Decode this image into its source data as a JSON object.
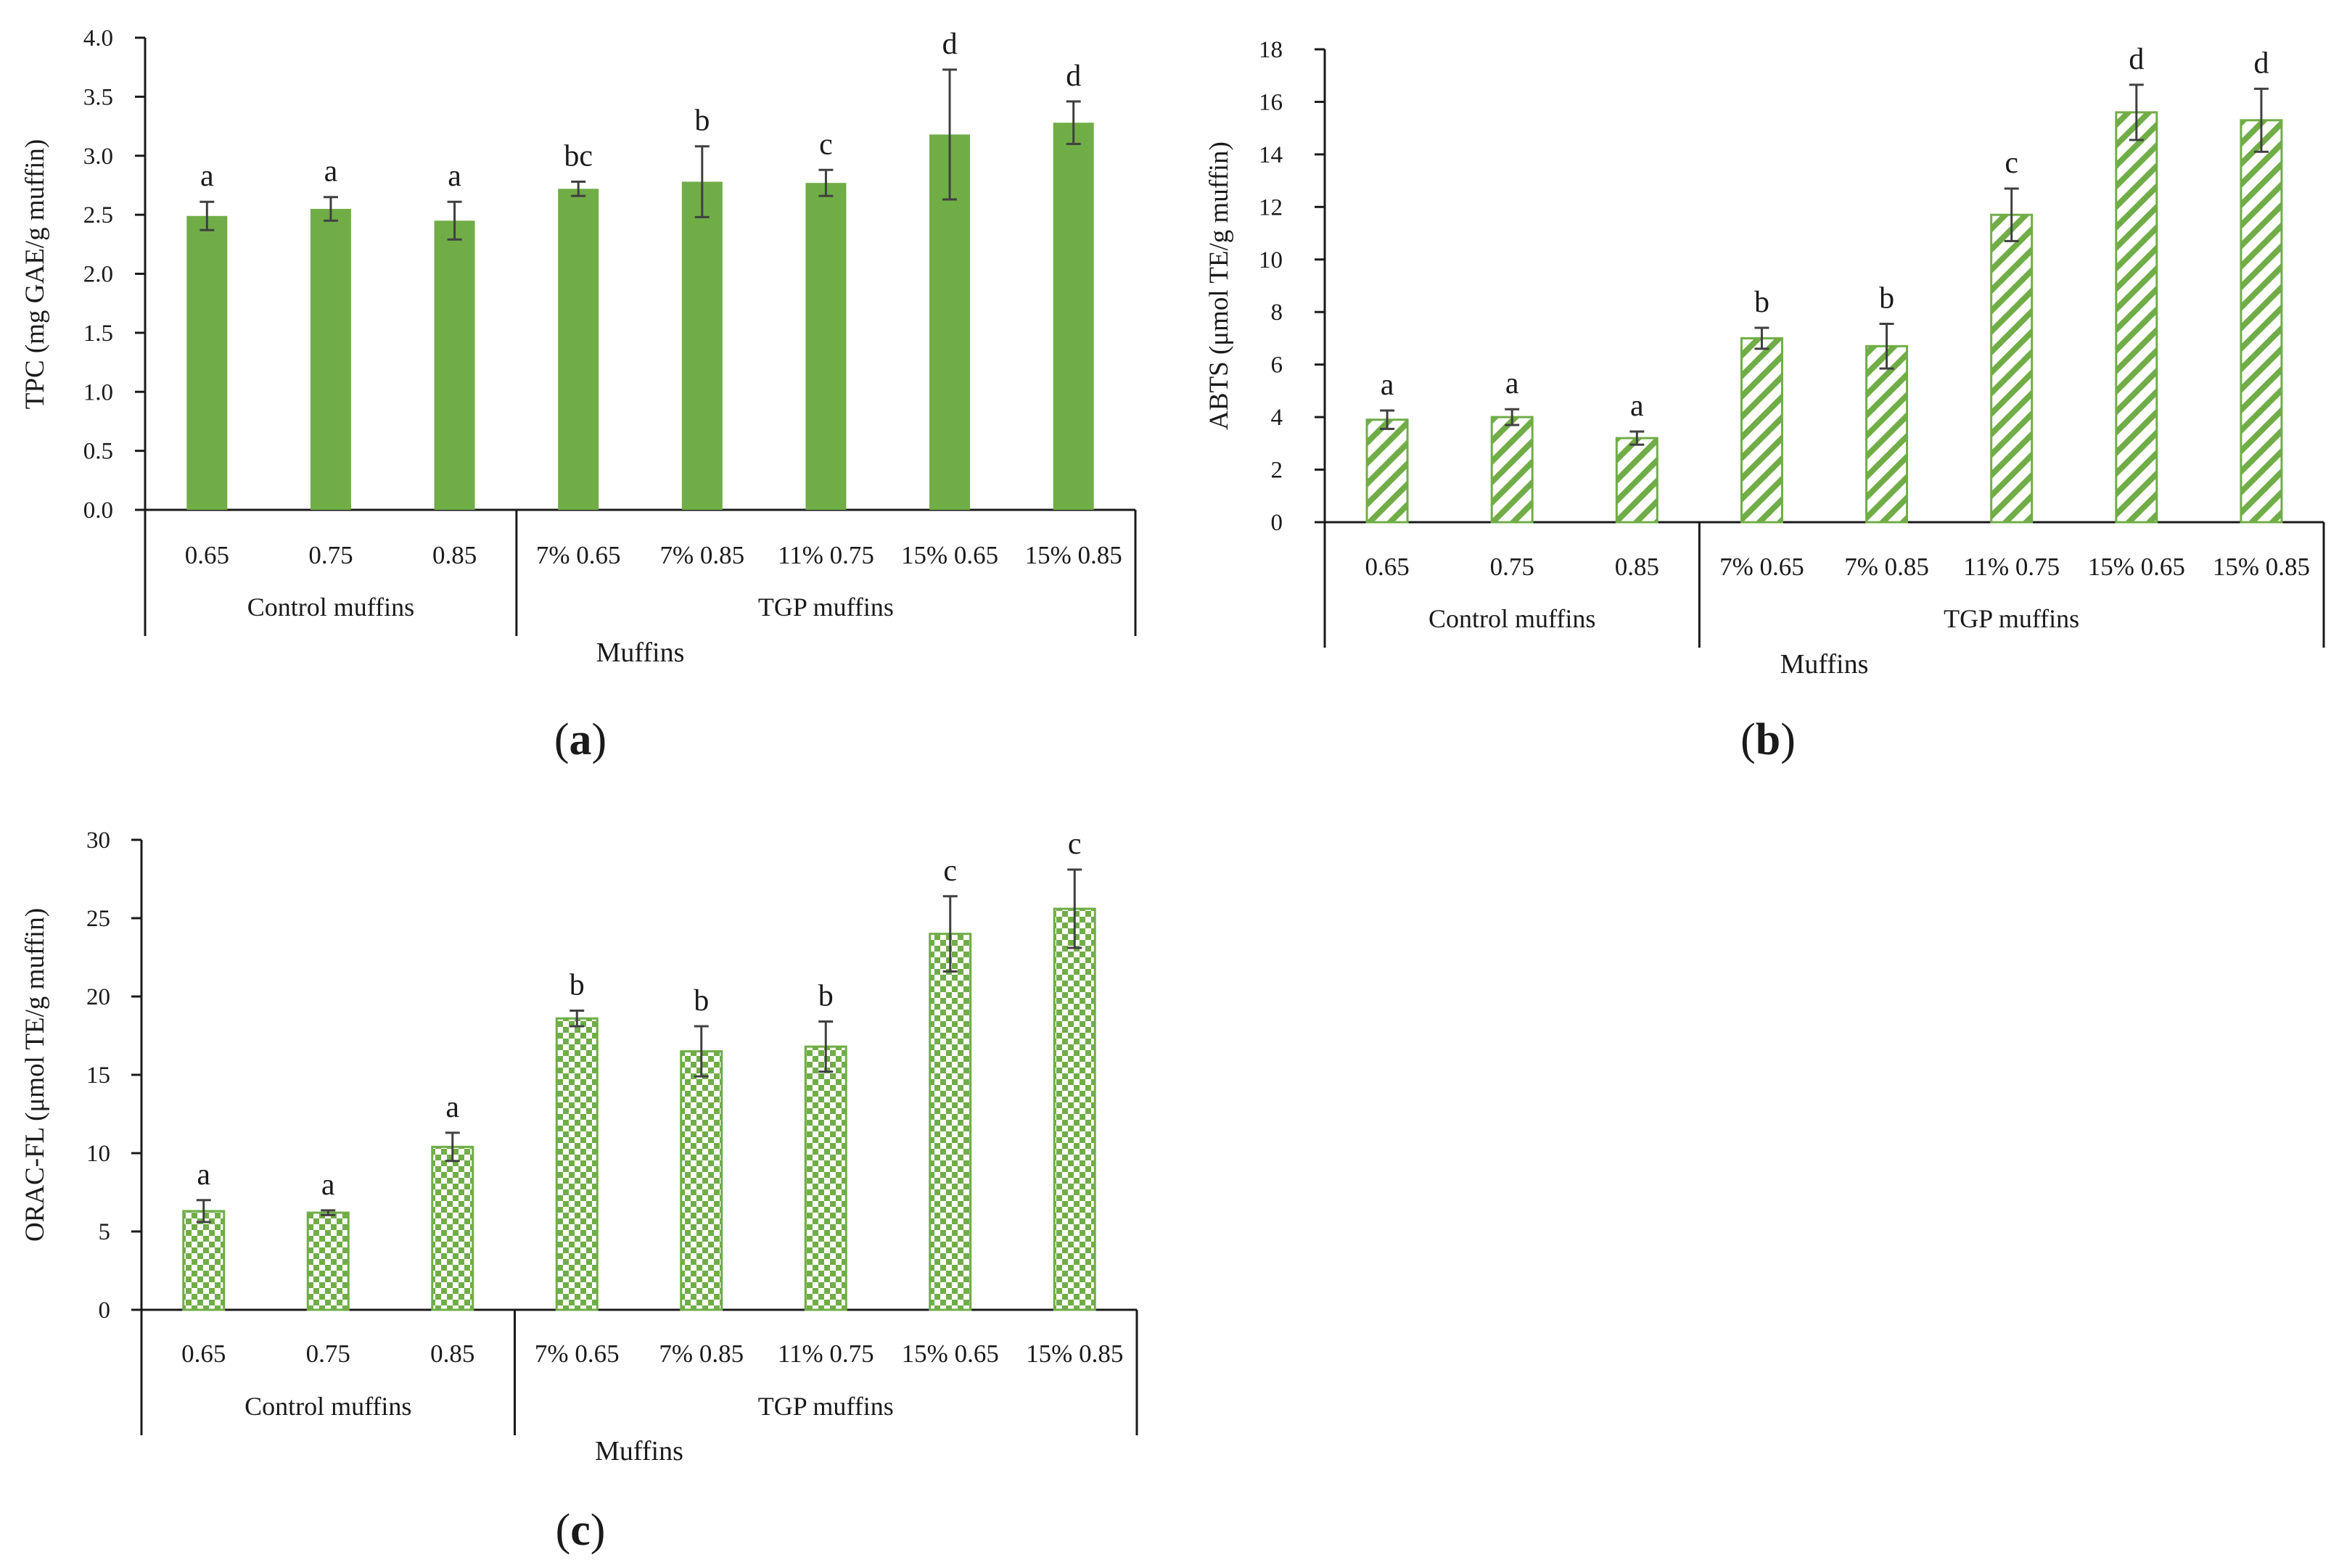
{
  "chart_data": [
    {
      "type": "bar",
      "panel_label": "a",
      "ylabel": "TPC (mg GAE/g muffin)",
      "xlabel": "Muffins",
      "ylim": [
        0,
        4.0
      ],
      "yticks": [
        "0.0",
        "0.5",
        "1.0",
        "1.5",
        "2.0",
        "2.5",
        "3.0",
        "3.5",
        "4.0"
      ],
      "pattern": "solid",
      "bar_color": "#70ad47",
      "categories": [
        "0.65",
        "0.75",
        "0.85",
        "7% 0.65",
        "7% 0.85",
        "11% 0.75",
        "15% 0.65",
        "15% 0.85"
      ],
      "groups": [
        {
          "label": "Control muffins",
          "count": 3
        },
        {
          "label": "TGP muffins",
          "count": 5
        }
      ],
      "values": [
        2.49,
        2.55,
        2.45,
        2.72,
        2.78,
        2.77,
        3.18,
        3.28
      ],
      "errors": [
        0.12,
        0.1,
        0.16,
        0.06,
        0.3,
        0.11,
        0.55,
        0.18
      ],
      "letters": [
        "a",
        "a",
        "a",
        "bc",
        "b",
        "c",
        "d",
        "d"
      ]
    },
    {
      "type": "bar",
      "panel_label": "b",
      "ylabel": "ABTS (μmol TE/g muffin)",
      "xlabel": "Muffins",
      "ylim": [
        0,
        18
      ],
      "yticks": [
        "0",
        "2",
        "4",
        "6",
        "8",
        "10",
        "12",
        "14",
        "16",
        "18"
      ],
      "pattern": "diagonal",
      "bar_color": "#70ad47",
      "categories": [
        "0.65",
        "0.75",
        "0.85",
        "7% 0.65",
        "7% 0.85",
        "11% 0.75",
        "15% 0.65",
        "15% 0.85"
      ],
      "groups": [
        {
          "label": "Control muffins",
          "count": 3
        },
        {
          "label": "TGP muffins",
          "count": 5
        }
      ],
      "values": [
        3.9,
        4.0,
        3.2,
        7.0,
        6.7,
        11.7,
        15.6,
        15.3
      ],
      "errors": [
        0.35,
        0.3,
        0.25,
        0.4,
        0.85,
        1.0,
        1.05,
        1.2
      ],
      "letters": [
        "a",
        "a",
        "a",
        "b",
        "b",
        "c",
        "d",
        "d"
      ]
    },
    {
      "type": "bar",
      "panel_label": "c",
      "ylabel": "ORAC-FL (μmol TE/g muffin)",
      "xlabel": "Muffins",
      "ylim": [
        0,
        30
      ],
      "yticks": [
        "0",
        "5",
        "10",
        "15",
        "20",
        "25",
        "30"
      ],
      "pattern": "checker",
      "bar_color": "#70ad47",
      "categories": [
        "0.65",
        "0.75",
        "0.85",
        "7% 0.65",
        "7% 0.85",
        "11% 0.75",
        "15% 0.65",
        "15% 0.85"
      ],
      "groups": [
        {
          "label": "Control muffins",
          "count": 3
        },
        {
          "label": "TGP muffins",
          "count": 5
        }
      ],
      "values": [
        6.3,
        6.2,
        10.4,
        18.6,
        16.5,
        16.8,
        24.0,
        25.6
      ],
      "errors": [
        0.7,
        0.15,
        0.9,
        0.5,
        1.6,
        1.6,
        2.4,
        2.5
      ],
      "letters": [
        "a",
        "a",
        "a",
        "b",
        "b",
        "b",
        "c",
        "c"
      ]
    }
  ]
}
